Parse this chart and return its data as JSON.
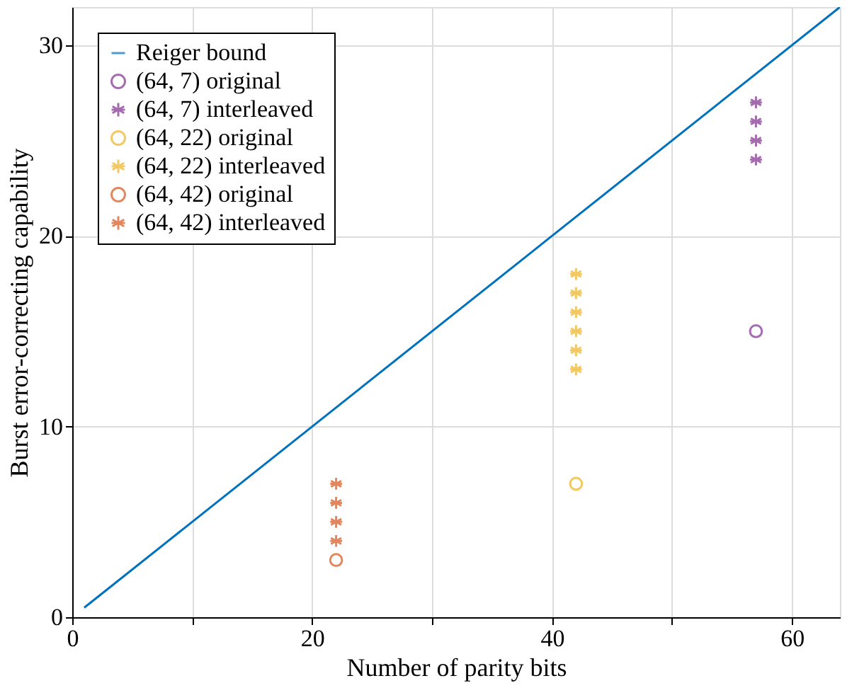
{
  "chart_data": {
    "type": "scatter",
    "xlabel": "Number of parity bits",
    "ylabel": "Burst error-correcting capability",
    "xlim": [
      0,
      64
    ],
    "ylim": [
      0,
      32
    ],
    "xticks": [
      0,
      {
        "value": 10,
        "label": null
      },
      20,
      {
        "value": 30,
        "label": null
      },
      40,
      {
        "value": 50,
        "label": null
      },
      60
    ],
    "yticks": [
      0,
      10,
      20,
      30
    ],
    "grid": true,
    "legend": "top left",
    "series": [
      {
        "name": "Reiger bound",
        "type": "line",
        "color": "#0072bd",
        "marker": "none",
        "line_style": "solid",
        "x": [
          1,
          64
        ],
        "values": [
          0.5,
          32
        ]
      },
      {
        "name": "(64, 7) original",
        "color": "#7e2f8e",
        "marker": "circle",
        "x": [
          57
        ],
        "values": [
          15
        ]
      },
      {
        "name": "(64, 7) interleaved",
        "color": "#7e2f8e",
        "marker": "cross",
        "x": [
          57,
          57,
          57,
          57
        ],
        "values": [
          24,
          25,
          26,
          27
        ]
      },
      {
        "name": "(64, 22) original",
        "color": "#edb120",
        "marker": "circle",
        "x": [
          42
        ],
        "values": [
          7
        ]
      },
      {
        "name": "(64, 22) interleaved",
        "color": "#edb120",
        "marker": "cross",
        "x": [
          42,
          42,
          42,
          42,
          42,
          42
        ],
        "values": [
          13,
          14,
          15,
          16,
          17,
          18
        ]
      },
      {
        "name": "(64, 42) original",
        "color": "#d95319",
        "marker": "circle",
        "x": [
          22
        ],
        "values": [
          3
        ]
      },
      {
        "name": "(64, 42) interleaved",
        "color": "#d95319",
        "marker": "cross",
        "x": [
          22,
          22,
          22,
          22
        ],
        "values": [
          4,
          5,
          6,
          7
        ]
      }
    ]
  }
}
